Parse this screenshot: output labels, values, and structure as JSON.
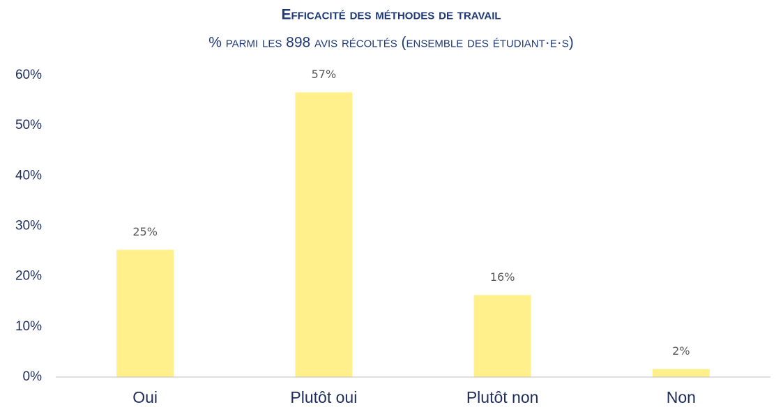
{
  "chart_data": {
    "type": "bar",
    "title": "Efficacité des méthodes de travail",
    "subtitle": "% parmi les 898 avis récoltés (ensemble des étudiant·e·s)",
    "categories": [
      "Oui",
      "Plutôt oui",
      "Plutôt non",
      "Non"
    ],
    "values": [
      25.3,
      56.6,
      16.3,
      1.6
    ],
    "value_labels": [
      "25%",
      "57%",
      "16%",
      "2%"
    ],
    "color": "#fff08c",
    "ylim": [
      0,
      60
    ],
    "yticks": [
      {
        "value": 0,
        "label": "0%"
      },
      {
        "value": 10,
        "label": "10%"
      },
      {
        "value": 20,
        "label": "20%"
      },
      {
        "value": 30,
        "label": "30%"
      },
      {
        "value": 40,
        "label": "40%"
      },
      {
        "value": 50,
        "label": "50%"
      },
      {
        "value": 60,
        "label": "60%"
      }
    ],
    "grid": false
  }
}
